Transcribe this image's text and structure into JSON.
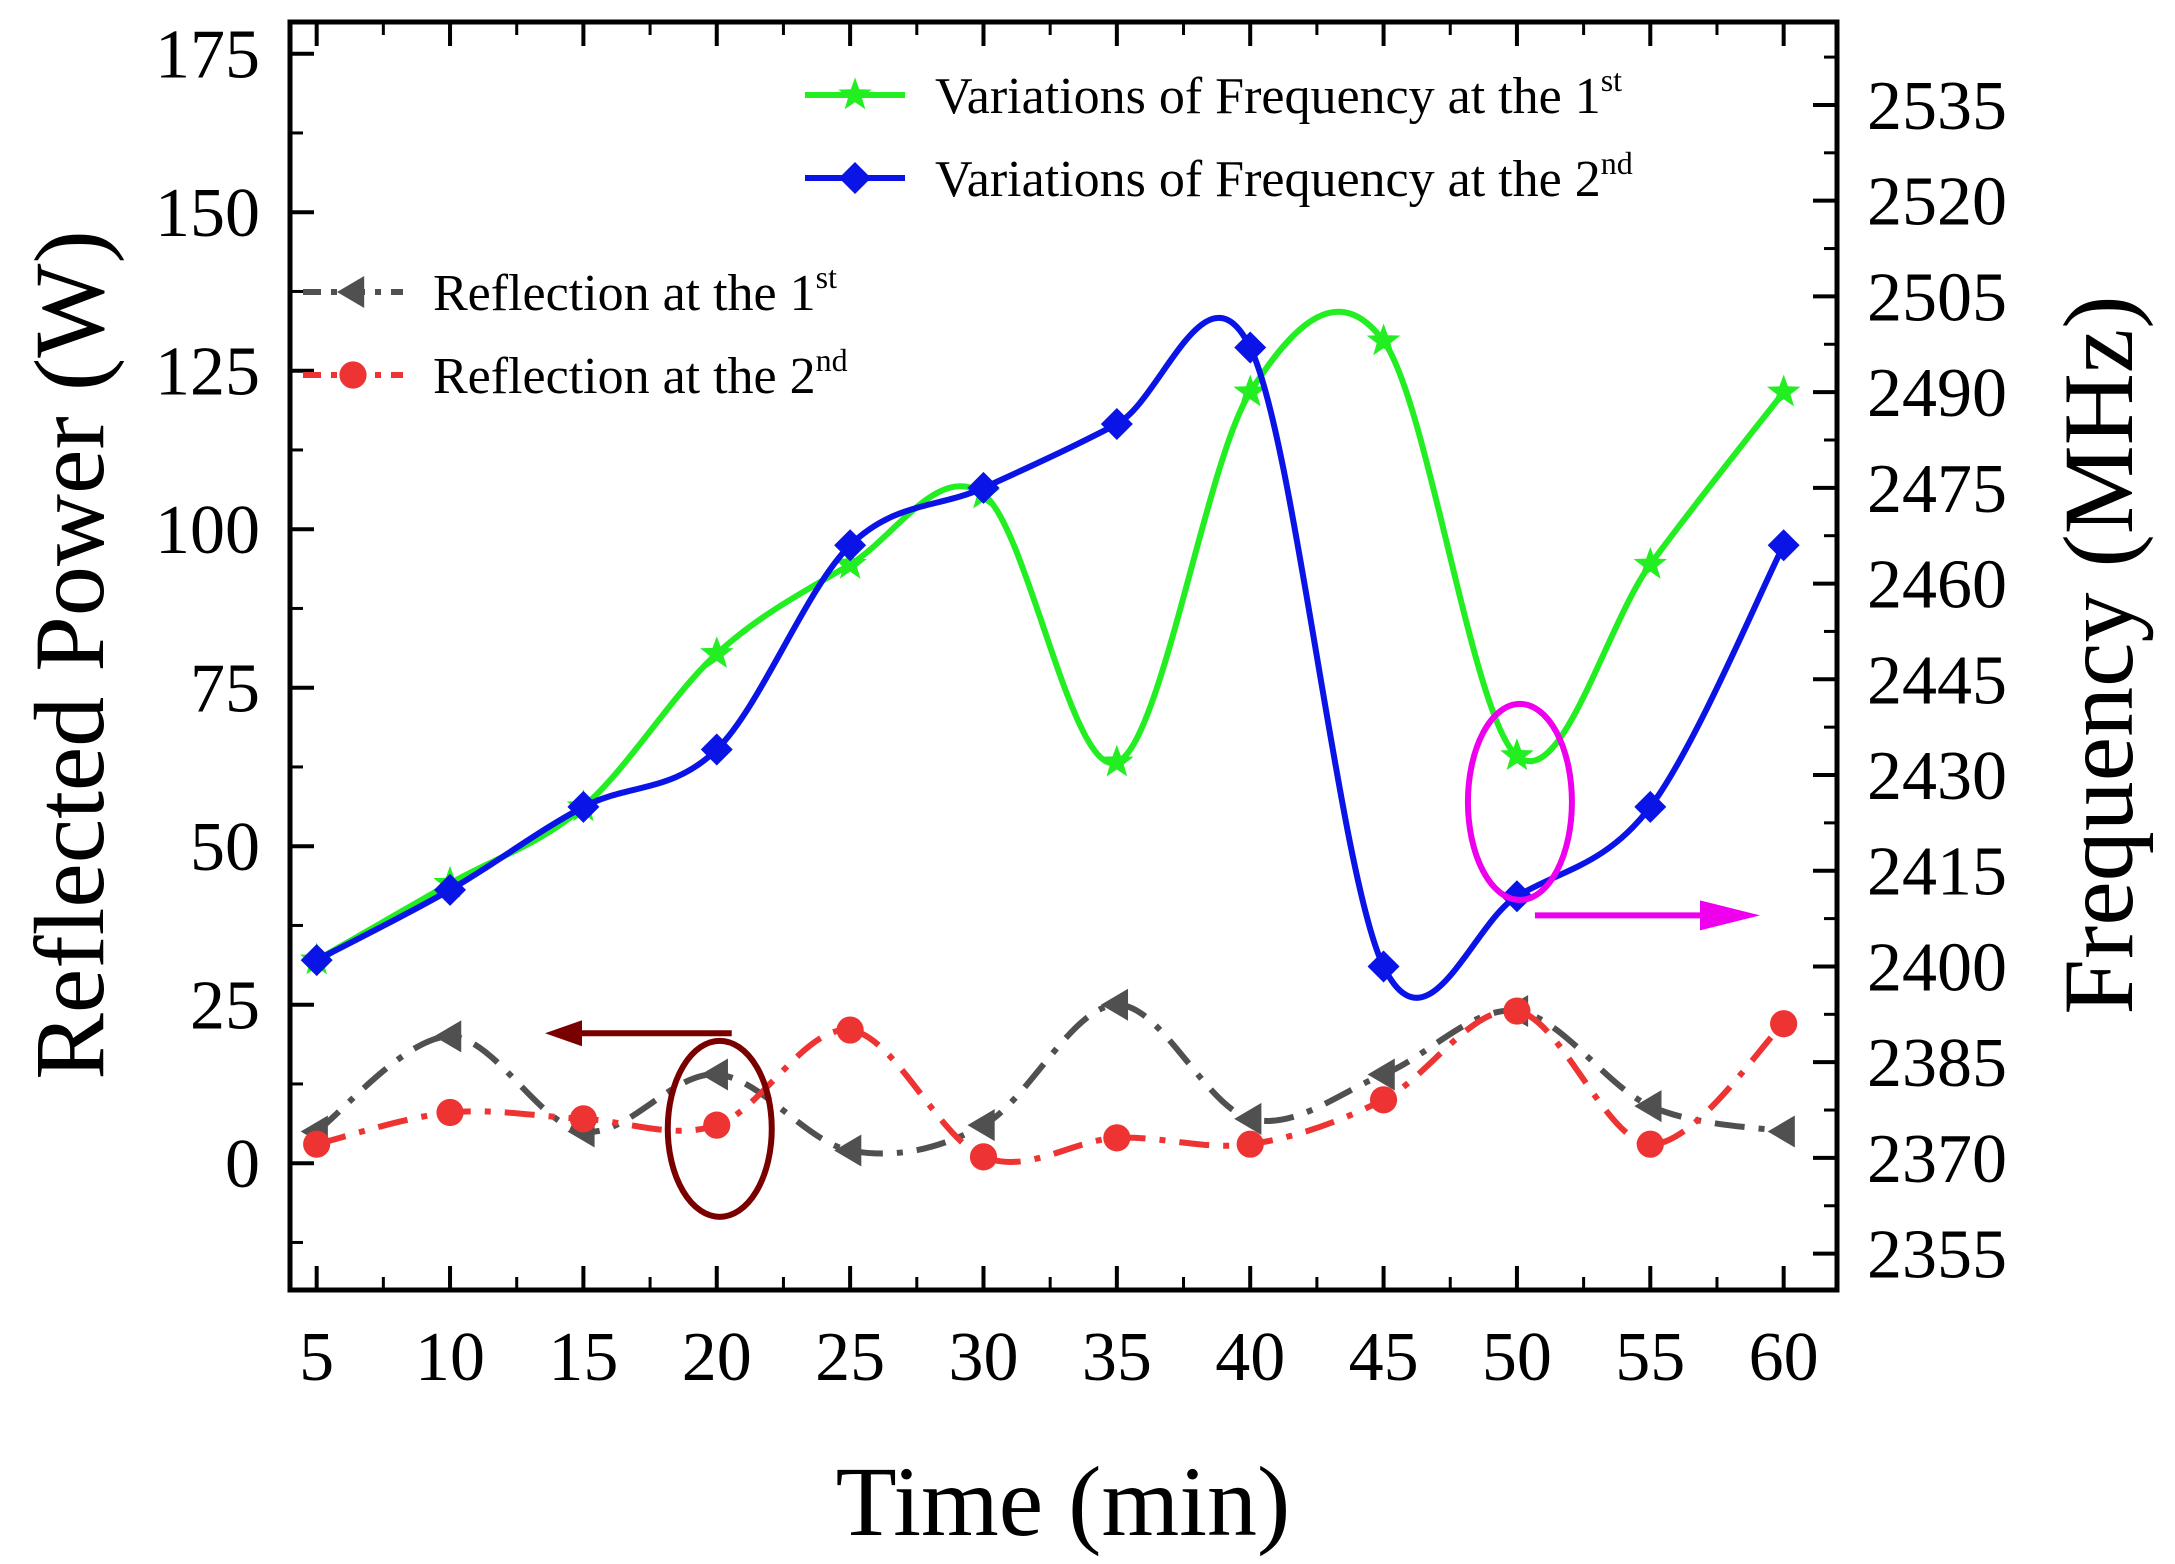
{
  "chart_data": {
    "type": "line",
    "x_title": "Time (min)",
    "y_left_title": "Reflected Power (W)",
    "y_right_title": "Frequency (MHz)",
    "x": [
      5,
      10,
      15,
      20,
      25,
      30,
      35,
      40,
      45,
      50,
      55,
      60
    ],
    "x_ticks": [
      "5",
      "10",
      "15",
      "20",
      "25",
      "30",
      "35",
      "40",
      "45",
      "50",
      "55",
      "60"
    ],
    "xlim": [
      4,
      62
    ],
    "y_left_ticks": [
      "0",
      "25",
      "50",
      "75",
      "100",
      "125",
      "150",
      "175"
    ],
    "y_left_range": [
      -20,
      180
    ],
    "y_right_ticks": [
      "2355",
      "2370",
      "2385",
      "2400",
      "2415",
      "2430",
      "2445",
      "2460",
      "2475",
      "2490",
      "2505",
      "2520",
      "2535"
    ],
    "y_right_range": [
      2349.3,
      2548
    ],
    "series": [
      {
        "name": "Variations of Frequency at the 1",
        "sup": "st",
        "axis": "right",
        "color": "#22EE22",
        "marker": "star",
        "dash": "solid",
        "values": [
          2401,
          2413,
          2425,
          2449,
          2463,
          2474,
          2432,
          2490,
          2498,
          2433,
          2463,
          2490
        ]
      },
      {
        "name": "Variations of Frequency at the 2",
        "sup": "nd",
        "axis": "right",
        "color": "#0A14E6",
        "marker": "diamond",
        "dash": "solid",
        "values": [
          2401,
          2412,
          2425,
          2434,
          2466,
          2475,
          2485,
          2497,
          2400,
          2411,
          2425,
          2466
        ]
      },
      {
        "name": "Reflection at the 1",
        "sup": "st",
        "axis": "left",
        "color": "#505050",
        "marker": "triangle-left",
        "dash": "dashdot",
        "values": [
          5,
          20,
          5,
          14,
          2,
          6,
          25,
          7,
          14,
          24,
          9,
          5
        ]
      },
      {
        "name": "Reflection at the 2",
        "sup": "nd",
        "axis": "left",
        "color": "#EE3333",
        "marker": "circle",
        "dash": "dashdot",
        "values": [
          3,
          8,
          7,
          6,
          21,
          1,
          4,
          3,
          10,
          24,
          3,
          22
        ]
      }
    ],
    "legend": "top",
    "annotations": [
      {
        "name": "left-axis-ellipse",
        "color": "#7A0000",
        "x": 20,
        "y_left": 7
      },
      {
        "name": "right-axis-ellipse",
        "color": "#EE00EE",
        "x": 50,
        "y_right": 2425
      }
    ]
  }
}
